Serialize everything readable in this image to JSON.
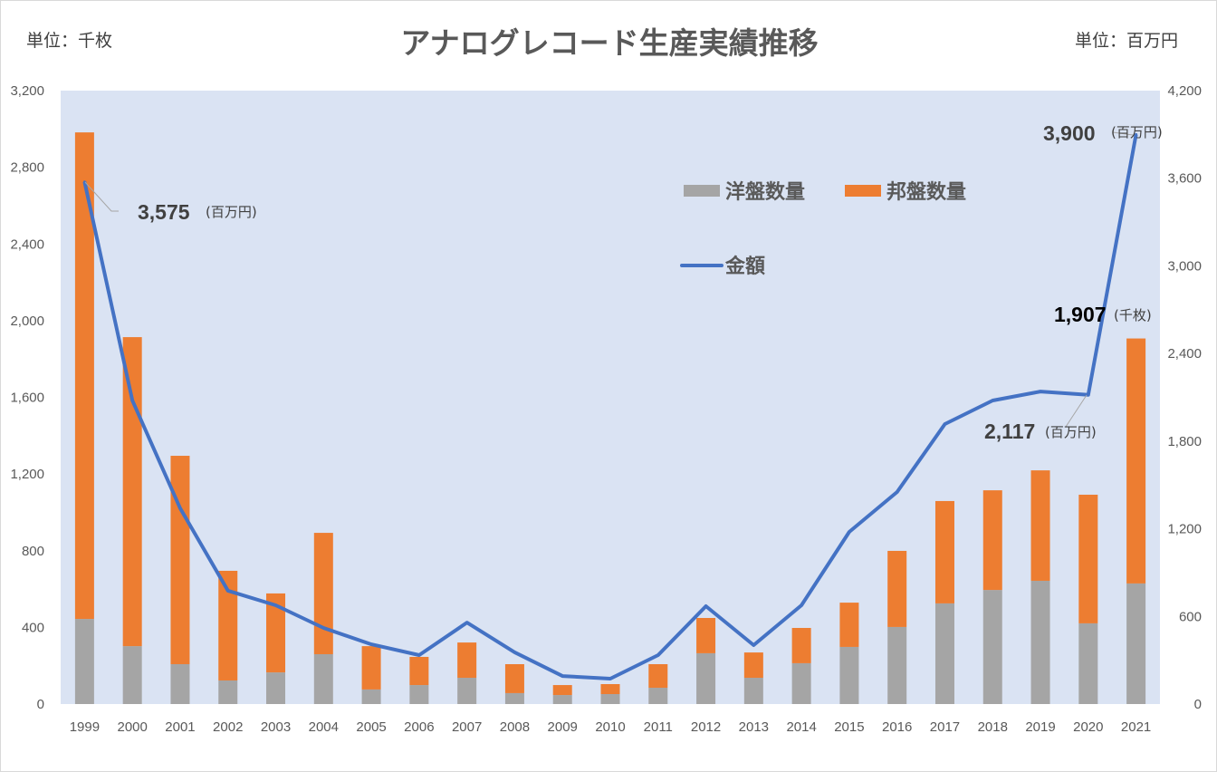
{
  "chart_data": {
    "type": "bar",
    "stacked": true,
    "title": "アナログレコード生産実績推移",
    "left_unit_label": "単位：千枚",
    "right_unit_label": "単位：百万円",
    "categories": [
      "1999",
      "2000",
      "2001",
      "2002",
      "2003",
      "2004",
      "2005",
      "2006",
      "2007",
      "2008",
      "2009",
      "2010",
      "2011",
      "2012",
      "2013",
      "2014",
      "2015",
      "2016",
      "2017",
      "2018",
      "2019",
      "2020",
      "2021"
    ],
    "series": [
      {
        "name": "洋盤数量",
        "type": "bar",
        "axis": "left",
        "color": "#a5a5a5",
        "values": [
          444,
          302,
          208,
          123,
          165,
          260,
          76,
          99,
          137,
          57,
          47,
          52,
          85,
          265,
          137,
          213,
          298,
          402,
          525,
          595,
          643,
          421,
          629
        ]
      },
      {
        "name": "邦盤数量",
        "type": "bar",
        "axis": "left",
        "color": "#ed7d31",
        "values": [
          2538,
          1612,
          1087,
          572,
          412,
          633,
          226,
          147,
          184,
          151,
          52,
          52,
          123,
          184,
          132,
          184,
          231,
          397,
          534,
          520,
          576,
          671,
          1278
        ]
      },
      {
        "name": "金額",
        "type": "line",
        "axis": "right",
        "color": "#4472c4",
        "values": [
          3575,
          2078,
          1340,
          776,
          676,
          521,
          409,
          335,
          558,
          354,
          192,
          174,
          335,
          670,
          403,
          676,
          1179,
          1452,
          1917,
          2078,
          2140,
          2117,
          3900
        ]
      }
    ],
    "left_axis": {
      "range": [
        0,
        3200
      ],
      "ticks": [
        "0",
        "400",
        "800",
        "1,200",
        "1,600",
        "2,000",
        "2,400",
        "2,800",
        "3,200"
      ]
    },
    "right_axis": {
      "range": [
        0,
        4200
      ],
      "ticks": [
        "0",
        "600",
        "1,200",
        "1,800",
        "2,400",
        "3,000",
        "3,600",
        "4,200"
      ]
    },
    "legend": {
      "position": "top-right-inside",
      "items": [
        "洋盤数量",
        "邦盤数量",
        "金額"
      ]
    },
    "grid": false,
    "plot_background": "#dae3f3",
    "annotations": [
      {
        "value": "3,575",
        "unit": "(百万円)",
        "category": "1999",
        "series": "金額"
      },
      {
        "value": "3,900",
        "unit": "(百万円)",
        "category": "2021",
        "series": "金額"
      },
      {
        "value": "1,907",
        "unit": "(千枚)",
        "category": "2021",
        "series": "total"
      },
      {
        "value": "2,117",
        "unit": "(百万円)",
        "category": "2020",
        "series": "金額"
      }
    ]
  }
}
